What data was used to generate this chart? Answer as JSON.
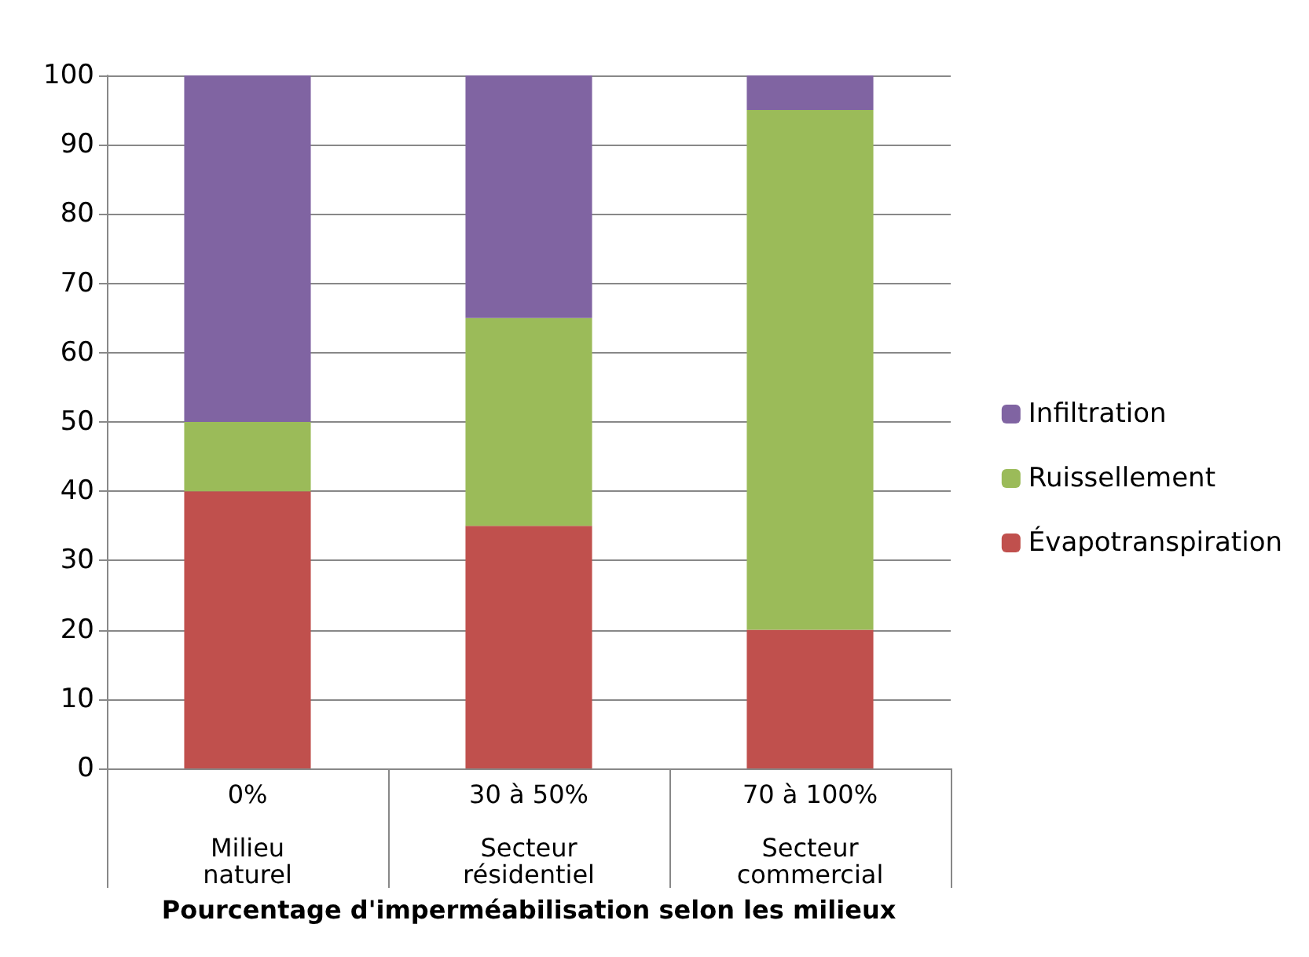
{
  "chart_data": {
    "type": "bar",
    "stacked": true,
    "xlabel": "Pourcentage d'imperméabilisation selon les milieux",
    "categories": [
      "0%\n\nMilieu\nnaturel",
      "30 à 50%\n\nSecteur\nrésidentiel",
      "70 à 100%\n\nSecteur\ncommercial"
    ],
    "series": [
      {
        "name": "Évapotranspiration",
        "color": "#c0504d",
        "values": [
          40,
          35,
          20
        ]
      },
      {
        "name": "Ruissellement",
        "color": "#9bbb59",
        "values": [
          10,
          30,
          75
        ]
      },
      {
        "name": "Infiltration",
        "color": "#8064a2",
        "values": [
          50,
          35,
          5
        ]
      }
    ],
    "ylim": [
      0,
      100
    ],
    "yticks": [
      0,
      10,
      20,
      30,
      40,
      50,
      60,
      70,
      80,
      90,
      100
    ],
    "grid": "y",
    "legend": "right"
  }
}
